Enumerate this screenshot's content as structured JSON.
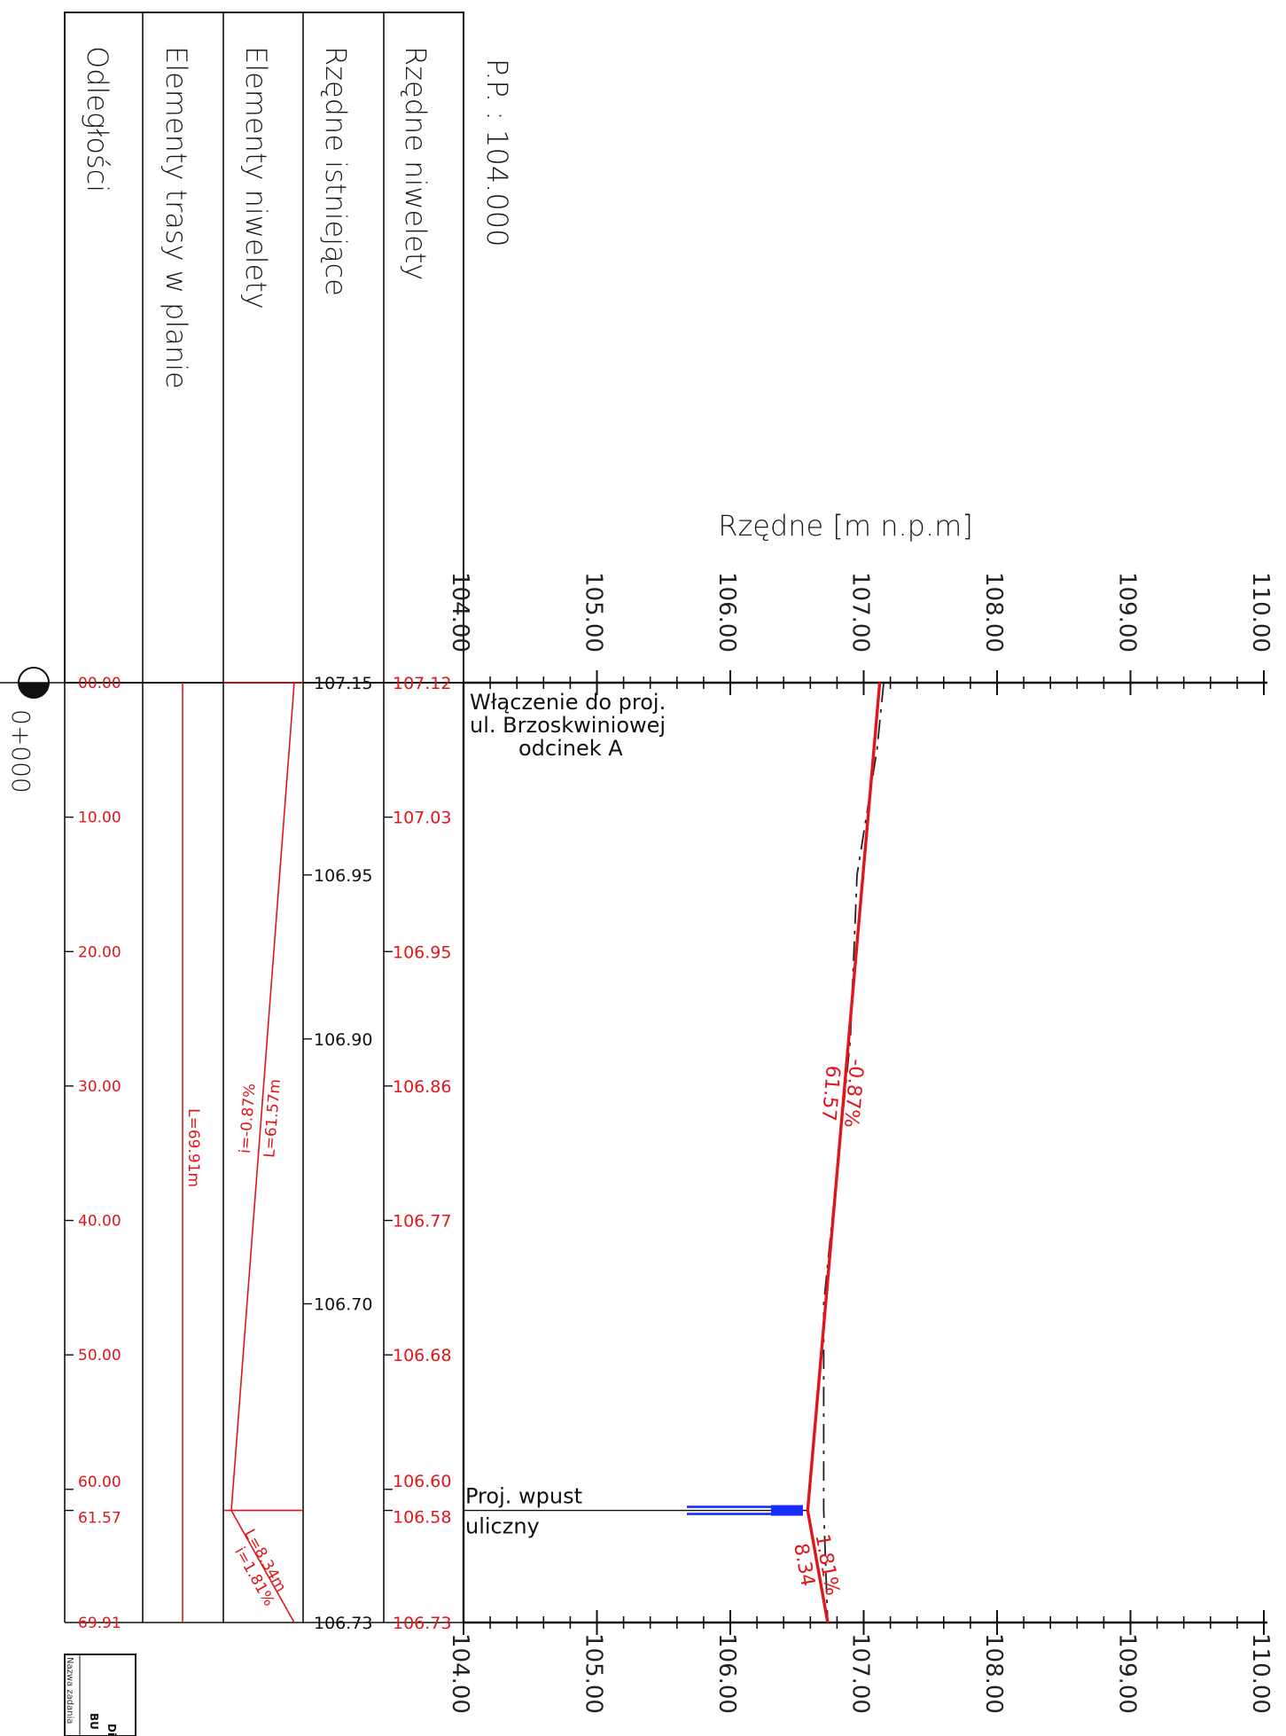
{
  "datum": "P.P. : 104.000",
  "row_labels": {
    "niweleta": "Rzędne niwelety",
    "istniejace": "Rzędne istniejące",
    "elementy_niwelety": "Elementy niwelety",
    "elementy_trasy": "Elementy trasy w  planie",
    "odleglosci": "Odległości"
  },
  "axis_title": "Rzędne [m n.p.m]",
  "elevation_ticks": [
    "104.00",
    "105.00",
    "106.00",
    "107.00",
    "108.00",
    "109.00",
    "110.00"
  ],
  "chainage": "0+000",
  "distances": [
    {
      "d": 0,
      "label": "00.00"
    },
    {
      "d": 10,
      "label": "10.00"
    },
    {
      "d": 20,
      "label": "20.00"
    },
    {
      "d": 30,
      "label": "30.00"
    },
    {
      "d": 40,
      "label": "40.00"
    },
    {
      "d": 50,
      "label": "50.00"
    },
    {
      "d": 60,
      "label": "60.00"
    },
    {
      "d": 61.57,
      "label": "61.57"
    },
    {
      "d": 69.91,
      "label": "69.91"
    }
  ],
  "design_elevations": [
    {
      "d": 0,
      "label": "107.12"
    },
    {
      "d": 10,
      "label": "107.03"
    },
    {
      "d": 20,
      "label": "106.95"
    },
    {
      "d": 30,
      "label": "106.86"
    },
    {
      "d": 40,
      "label": "106.77"
    },
    {
      "d": 50,
      "label": "106.68"
    },
    {
      "d": 60,
      "label": "106.60"
    },
    {
      "d": 61.57,
      "label": "106.58"
    },
    {
      "d": 69.91,
      "label": "106.73"
    }
  ],
  "existing_elevations": [
    {
      "d": 0,
      "label": "107.15"
    },
    {
      "d": 14.3,
      "label": "106.95"
    },
    {
      "d": 26.5,
      "label": "106.90"
    },
    {
      "d": 46.2,
      "label": "106.70"
    },
    {
      "d": 69.91,
      "label": "106.73"
    }
  ],
  "grade_elements": [
    {
      "from": 0,
      "to": 61.57,
      "length": "L=61.57m",
      "grade": "i=-0.87%"
    },
    {
      "from": 61.57,
      "to": 69.91,
      "length": "L=8.34m",
      "grade": "i=1.81%"
    }
  ],
  "plan_element": {
    "from": 0,
    "to": 69.91,
    "length": "L=69.91m"
  },
  "profile": {
    "design": [
      {
        "d": 0,
        "z": 107.12
      },
      {
        "d": 61.57,
        "z": 106.58
      },
      {
        "d": 69.91,
        "z": 106.73
      }
    ],
    "existing": [
      {
        "d": 0,
        "z": 107.15
      },
      {
        "d": 5,
        "z": 107.1
      },
      {
        "d": 14.3,
        "z": 106.95
      },
      {
        "d": 26.5,
        "z": 106.9
      },
      {
        "d": 46.2,
        "z": 106.7
      },
      {
        "d": 61.57,
        "z": 106.7
      },
      {
        "d": 69.91,
        "z": 106.73
      }
    ],
    "segments": [
      {
        "at": 30.5,
        "grade": "-0.87%",
        "length": "61.57"
      },
      {
        "at": 65.7,
        "grade": "1.81%",
        "length": "8.34"
      }
    ]
  },
  "notes": {
    "start": [
      "Włączenie do proj.",
      "ul. Brzoskwiniowej",
      "odcinek A"
    ],
    "inlet": [
      "Proj. wpust",
      "uliczny"
    ]
  },
  "title_block": {
    "field_label": "Nazwa zadania",
    "text_a": "BU",
    "text_b": "Di"
  }
}
